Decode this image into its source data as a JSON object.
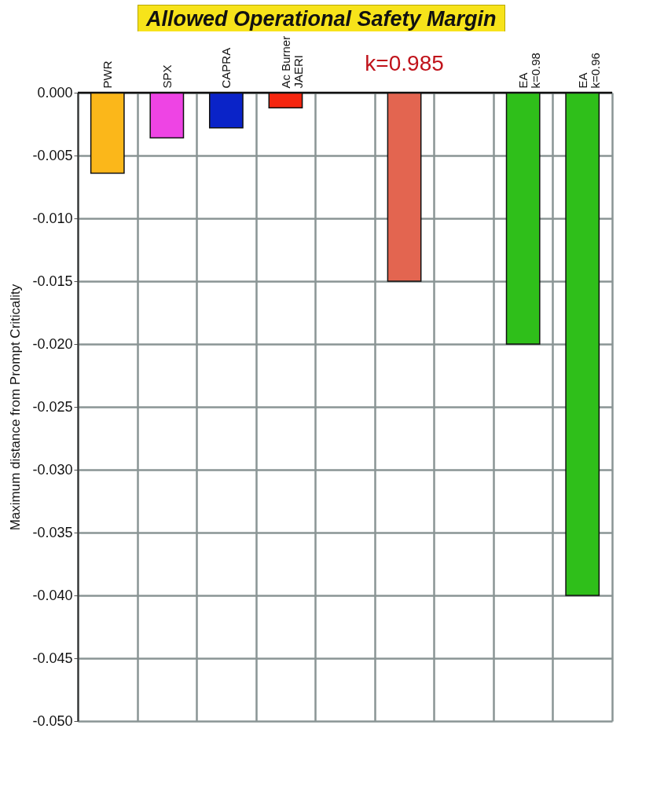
{
  "chart_data": {
    "type": "bar",
    "title": "Allowed Operational Safety Margin",
    "ylabel": "Maximum distance from Prompt Criticality",
    "categories": [
      "PWR",
      "SPX",
      "CAPRA",
      "Ac Burner\nJAERI",
      null,
      null,
      null,
      "EA\nk=0.98",
      "EA\nk=0.96"
    ],
    "values": [
      -0.0064,
      -0.0036,
      -0.0028,
      -0.0012,
      null,
      -0.015,
      null,
      -0.02,
      -0.04
    ],
    "colors": [
      "#fbb71a",
      "#ee44e4",
      "#0a23c8",
      "#f5260f",
      "#ffffff",
      "#e36550",
      "#ffffff",
      "#2fbf1a",
      "#2fbf1a"
    ],
    "ylim": [
      -0.05,
      0
    ],
    "yticks": [
      {
        "value": 0,
        "label": "0.000"
      },
      {
        "value": -0.005,
        "label": "-0.005"
      },
      {
        "value": -0.01,
        "label": "-0.010"
      },
      {
        "value": -0.015,
        "label": "-0.015"
      },
      {
        "value": -0.02,
        "label": "-0.020"
      },
      {
        "value": -0.025,
        "label": "-0.025"
      },
      {
        "value": -0.03,
        "label": "-0.030"
      },
      {
        "value": -0.035,
        "label": "-0.035"
      },
      {
        "value": -0.04,
        "label": "-0.040"
      },
      {
        "value": -0.045,
        "label": "-0.045"
      },
      {
        "value": -0.05,
        "label": "-0.050"
      }
    ],
    "grid": true,
    "annotations": [
      "k=0.985"
    ]
  }
}
